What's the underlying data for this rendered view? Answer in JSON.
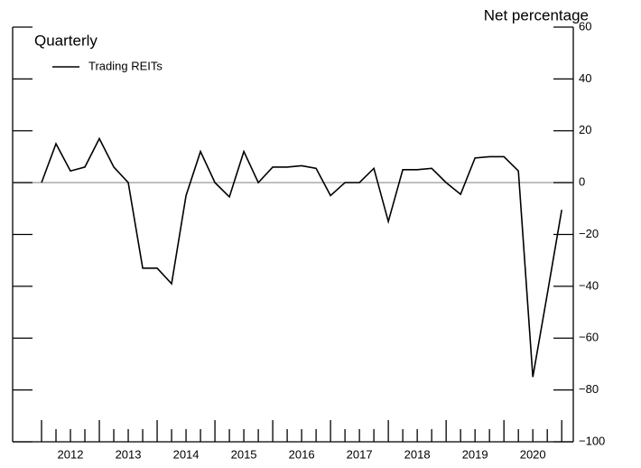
{
  "chart_data": {
    "type": "line",
    "y_axis_label": "Net percentage",
    "annotation": "Quarterly",
    "x": [
      2012,
      2012.25,
      2012.5,
      2012.75,
      2013,
      2013.25,
      2013.5,
      2013.75,
      2014,
      2014.25,
      2014.5,
      2014.75,
      2015,
      2015.25,
      2015.5,
      2015.75,
      2016,
      2016.25,
      2016.5,
      2016.75,
      2017,
      2017.25,
      2017.5,
      2017.75,
      2018,
      2018.25,
      2018.5,
      2018.75,
      2019,
      2019.25,
      2019.5,
      2019.75,
      2020,
      2020.25,
      2020.5,
      2020.75,
      2021
    ],
    "series": [
      {
        "name": "Trading REITs",
        "color": "#000000",
        "values": [
          0,
          15,
          4.5,
          6,
          17,
          6,
          0,
          -33,
          -33,
          -39,
          -5,
          12,
          0,
          -5.5,
          12,
          0,
          6,
          6,
          6.5,
          5.5,
          -5,
          0,
          0,
          5.5,
          -15,
          5,
          5,
          5.5,
          0,
          -4.5,
          9.5,
          10,
          10,
          4.5,
          -75,
          -43,
          -10.5
        ]
      }
    ],
    "xlim": [
      2011.5,
      2021.2
    ],
    "xticks": [
      {
        "value": 2012.5,
        "label": "2012"
      },
      {
        "value": 2013.5,
        "label": "2013"
      },
      {
        "value": 2014.5,
        "label": "2014"
      },
      {
        "value": 2015.5,
        "label": "2015"
      },
      {
        "value": 2016.5,
        "label": "2016"
      },
      {
        "value": 2017.5,
        "label": "2017"
      },
      {
        "value": 2018.5,
        "label": "2018"
      },
      {
        "value": 2019.5,
        "label": "2019"
      },
      {
        "value": 2020.5,
        "label": "2020"
      }
    ],
    "ylim": [
      -100,
      60
    ],
    "yticks": [
      60,
      40,
      20,
      0,
      {
        "value": -20,
        "label": "−20"
      },
      {
        "value": -40,
        "label": "−40"
      },
      {
        "value": -60,
        "label": "−60"
      },
      {
        "value": -80,
        "label": "−80"
      },
      {
        "value": -100,
        "label": "−100"
      }
    ],
    "legend": "upper left"
  }
}
